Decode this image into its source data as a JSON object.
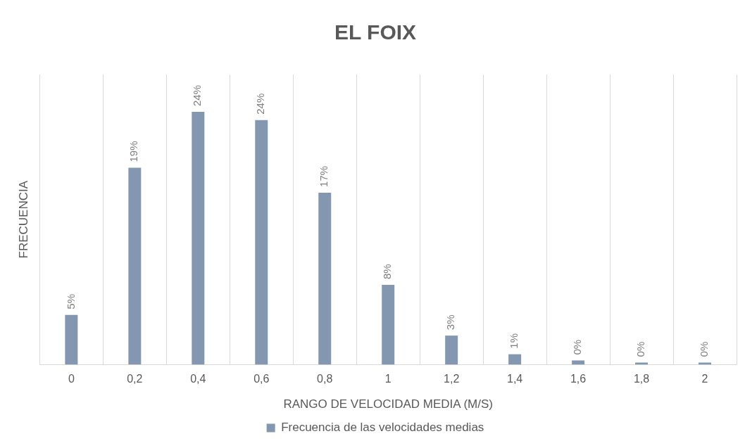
{
  "chart_data": {
    "type": "bar",
    "title": "EL FOIX",
    "xlabel": "RANGO DE VELOCIDAD MEDIA (M/S)",
    "ylabel": "FRECUENCIA",
    "categories": [
      "0",
      "0,2",
      "0,4",
      "0,6",
      "0,8",
      "1",
      "1,2",
      "1,4",
      "1,6",
      "1,8",
      "2"
    ],
    "series": [
      {
        "name": "Frecuencia de las velocidades medias",
        "color": "#8497b0",
        "values": [
          4.8,
          19.0,
          24.4,
          23.6,
          16.6,
          7.7,
          2.8,
          1.0,
          0.4,
          0.2,
          0.2
        ],
        "value_labels": [
          "5%",
          "19%",
          "24%",
          "24%",
          "17%",
          "8%",
          "3%",
          "1%",
          "0%",
          "0%",
          "0%"
        ]
      }
    ],
    "ylim": [
      0,
      28
    ],
    "tick_labels": "x",
    "grid": "x",
    "legend": "bottom"
  }
}
